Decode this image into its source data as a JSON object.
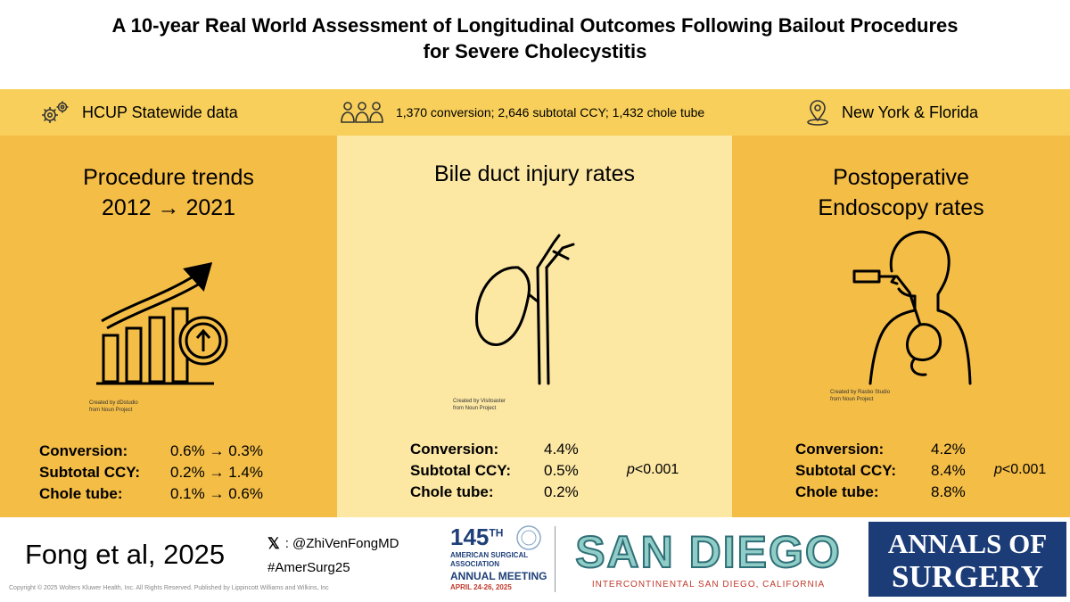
{
  "title": {
    "line1": "A 10-year Real World Assessment of Longitudinal Outcomes Following Bailout Procedures",
    "line2": "for Severe Cholecystitis"
  },
  "info": {
    "data_source": "HCUP Statewide data",
    "cohort": "1,370 conversion; 2,646 subtotal CCY; 1,432 chole tube",
    "location": "New York & Florida"
  },
  "panels": {
    "left": {
      "title_line1": "Procedure trends",
      "title_line2": "2012 → 2021",
      "credit_line1": "Created by dDstudio",
      "credit_line2": "from Noun Project",
      "stats": [
        {
          "label": "Conversion:",
          "value": "0.6% → 0.3%"
        },
        {
          "label": "Subtotal CCY:",
          "value": "0.2% → 1.4%"
        },
        {
          "label": "Chole tube:",
          "value": "0.1% → 0.6%"
        }
      ]
    },
    "center": {
      "title": "Bile duct injury rates",
      "credit_line1": "Created by Visitoaster",
      "credit_line2": "from Noun Project",
      "stats": [
        {
          "label": "Conversion:",
          "value": "4.4%"
        },
        {
          "label": "Subtotal CCY:",
          "value": "0.5%"
        },
        {
          "label": "Chole tube:",
          "value": "0.2%"
        }
      ],
      "p_prefix": "p",
      "p_suffix": "<0.001"
    },
    "right": {
      "title_line1": "Postoperative",
      "title_line2": "Endoscopy rates",
      "credit_line1": "Created by Rasbo Studio",
      "credit_line2": "from Noun Project",
      "stats": [
        {
          "label": "Conversion:",
          "value": "4.2%"
        },
        {
          "label": "Subtotal CCY:",
          "value": "8.4%"
        },
        {
          "label": "Chole tube:",
          "value": "8.8%"
        }
      ],
      "p_prefix": "p",
      "p_suffix": "<0.001"
    }
  },
  "footer": {
    "citation": "Fong et al, 2025",
    "twitter": ": @ZhiVenFongMD",
    "hashtag": "#AmerSurg25",
    "copyright": "Copyright © 2025 Wolters Kluwer Health, Inc. All Rights Reserved. Published by Lippincott Williams and Wilkins, Inc",
    "meeting_number": "145",
    "meeting_number_suffix": "TH",
    "meeting_org": "AMERICAN SURGICAL ASSOCIATION",
    "meeting_name": "ANNUAL MEETING",
    "meeting_dates": "APRIL 24-26, 2025",
    "city": "SAN DIEGO",
    "venue": "INTERCONTINENTAL SAN DIEGO, CALIFORNIA",
    "journal_line1": "ANNALS OF",
    "journal_line2": "SURGERY"
  }
}
